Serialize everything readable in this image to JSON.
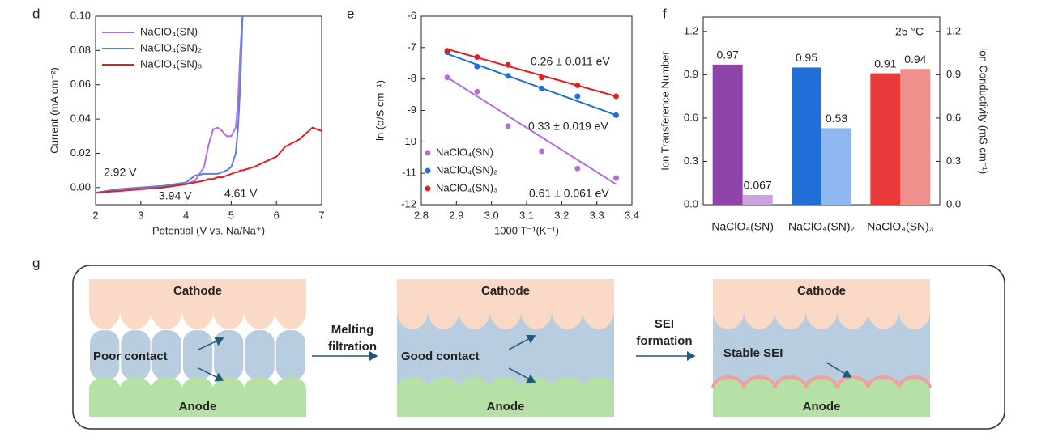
{
  "chart_data": [
    {
      "panel": "d",
      "type": "line",
      "xlabel": "Potential (V vs. Na/Na⁺)",
      "ylabel": "Current (mA cm⁻²)",
      "x": [
        2,
        2.5,
        3,
        3.5,
        4,
        4.2,
        4.4,
        4.5,
        4.6,
        4.7,
        4.8,
        4.9,
        5,
        5.1,
        5.15,
        5.2,
        5.25,
        5.5,
        6,
        6.2,
        6.5,
        6.8,
        7
      ],
      "xlim": [
        2,
        7
      ],
      "xticks": [
        2,
        3,
        4,
        5,
        6,
        7
      ],
      "ylim": [
        -0.01,
        0.1
      ],
      "yticks": [
        {
          "value": 0,
          "label": "0.00"
        },
        {
          "value": 0.02,
          "label": "0.02"
        },
        {
          "value": 0.04,
          "label": "0.04"
        },
        {
          "value": 0.06,
          "label": "0.06"
        },
        {
          "value": 0.08,
          "label": "0.08"
        },
        {
          "value": 0.1,
          "label": "0.10"
        }
      ],
      "legend": "upper left",
      "series": [
        {
          "name": "NaClO₄(SN)",
          "color": "#b26fd9",
          "values": [
            -0.003,
            -0.001,
            0,
            0.001,
            0.002,
            0.004,
            0.012,
            0.025,
            0.034,
            0.035,
            0.033,
            0.03,
            0.03,
            0.035,
            0.05,
            0.08,
            0.1,
            null,
            null,
            null,
            null,
            null,
            null
          ]
        },
        {
          "name": "NaClO₄(SN)₂",
          "color": "#5b7fe0",
          "values": [
            -0.003,
            -0.001,
            0,
            0.001,
            0.003,
            0.007,
            0.008,
            0.008,
            0.008,
            0.008,
            0.009,
            0.01,
            0.012,
            0.02,
            0.035,
            0.06,
            0.1,
            null,
            null,
            null,
            null,
            null,
            null
          ]
        },
        {
          "name": "NaClO₄(SN)₃",
          "color": "#e02020",
          "values": [
            -0.003,
            -0.002,
            -0.001,
            0,
            0.002,
            0.003,
            0.004,
            0.005,
            0.005,
            0.006,
            0.006,
            0.007,
            0.008,
            0.009,
            0.009,
            0.01,
            0.01,
            0.012,
            0.018,
            0.024,
            0.028,
            0.035,
            0.033
          ]
        }
      ],
      "annotations": [
        {
          "text": "2.92 V",
          "color": "#b26fd9"
        },
        {
          "text": "3.94 V",
          "color": "#5b7fe0"
        },
        {
          "text": "4.61 V",
          "color": "#e02020"
        }
      ]
    },
    {
      "panel": "e",
      "type": "scatter",
      "xlabel": "1000 T⁻¹(K⁻¹)",
      "ylabel": "ln (σ/S cm⁻¹)",
      "x": [
        2.874,
        2.959,
        3.047,
        3.143,
        3.245,
        3.355
      ],
      "xlim": [
        2.8,
        3.4
      ],
      "xticks": [
        2.8,
        2.9,
        {
          "value": 3,
          "label": "3.0"
        },
        3.1,
        3.2,
        3.3,
        3.4
      ],
      "ylim": [
        -12,
        -6
      ],
      "yticks": [
        -12,
        -11,
        -10,
        -9,
        -8,
        -7,
        -6
      ],
      "legend": "lower left",
      "series": [
        {
          "name": "NaClO₄(SN)",
          "color": "#b26fd9",
          "values": [
            -7.95,
            -8.4,
            -9.5,
            -10.3,
            -10.85,
            -11.15
          ],
          "fit": [
            -7.95,
            -11.35
          ]
        },
        {
          "name": "NaClO₄(SN)₂",
          "color": "#1f6fd6",
          "values": [
            -7.15,
            -7.6,
            -7.9,
            -8.3,
            -8.55,
            -9.15
          ],
          "fit": [
            -7.2,
            -9.15
          ]
        },
        {
          "name": "NaClO₄(SN)₃",
          "color": "#e02020",
          "values": [
            -7.1,
            -7.3,
            -7.55,
            -7.95,
            -8.2,
            -8.55
          ],
          "fit": [
            -7.05,
            -8.55
          ]
        }
      ],
      "annotations": [
        {
          "text": "0.26 ± 0.011 eV",
          "color": "#e02020"
        },
        {
          "text": "0.33 ± 0.019 eV",
          "color": "#1f6fd6"
        },
        {
          "text": "0.61 ± 0.061 eV",
          "color": "#b26fd9"
        }
      ]
    },
    {
      "panel": "f",
      "type": "bar",
      "ylabel": "Ion Transference Number",
      "y2label": "Ion Conductivity (mS cm⁻¹)",
      "categories": [
        "NaClO₄(SN)",
        "NaClO₄(SN)₂",
        "NaClO₄(SN)₃"
      ],
      "ylim": [
        0,
        1.3
      ],
      "yticks": [
        {
          "value": 0,
          "label": "0.0"
        },
        {
          "value": 0.3,
          "label": "0.3"
        },
        {
          "value": 0.6,
          "label": "0.6"
        },
        {
          "value": 0.9,
          "label": "0.9"
        },
        {
          "value": 1.2,
          "label": "1.2"
        }
      ],
      "y2lim": [
        0,
        1.3
      ],
      "y2ticks": [
        {
          "value": 0,
          "label": "0.0"
        },
        {
          "value": 0.3,
          "label": "0.3"
        },
        {
          "value": 0.6,
          "label": "0.6"
        },
        {
          "value": 0.9,
          "label": "0.9"
        },
        {
          "value": 1.2,
          "label": "1.2"
        }
      ],
      "series": [
        {
          "colors": [
            "#8e44a8",
            "#1f6fd6",
            "#e83a3a"
          ],
          "values": [
            0.97,
            0.95,
            0.91
          ]
        },
        {
          "colors": [
            "#c9a3dd",
            "#8fb6ef",
            "#f0908c"
          ],
          "values": [
            0.067,
            0.53,
            0.94
          ],
          "axis": "y2"
        }
      ],
      "annotations": [
        {
          "text": "25 °C"
        }
      ]
    }
  ],
  "diagram": {
    "panel": "g",
    "stages": [
      {
        "cathode": "Cathode",
        "anode": "Anode",
        "label": "Poor contact"
      },
      {
        "cathode": "Cathode",
        "anode": "Anode",
        "label": "Good contact"
      },
      {
        "cathode": "Cathode",
        "anode": "Anode",
        "label": "Stable SEI"
      }
    ],
    "arrows": [
      {
        "lines": [
          "Melting",
          "filtration"
        ]
      },
      {
        "lines": [
          "SEI",
          "formation"
        ]
      }
    ]
  }
}
